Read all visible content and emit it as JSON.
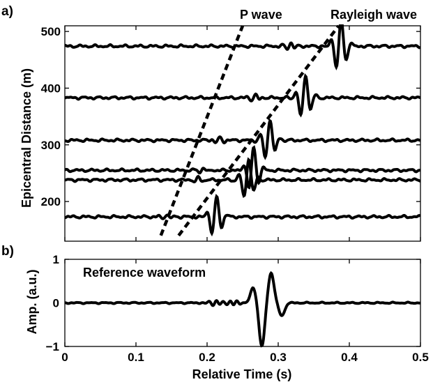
{
  "chart_data": [
    {
      "type": "line",
      "panel_label": "a)",
      "title": "",
      "xlabel": "",
      "ylabel": "Epicentral Distance (m)",
      "xlim": [
        0,
        0.5
      ],
      "ylim": [
        130,
        510
      ],
      "yticks": [
        200,
        300,
        400,
        500
      ],
      "ytick_labels": [
        "200",
        "300",
        "400",
        "500"
      ],
      "xtick_labels_shown": false,
      "grid": false,
      "traces": [
        {
          "offset": 173,
          "arrival_time": 0.21,
          "amplitude": 28
        },
        {
          "offset": 238,
          "arrival_time": 0.255,
          "amplitude": 30
        },
        {
          "offset": 255,
          "arrival_time": 0.262,
          "amplitude": 32
        },
        {
          "offset": 308,
          "arrival_time": 0.285,
          "amplitude": 30
        },
        {
          "offset": 383,
          "arrival_time": 0.335,
          "amplitude": 32
        },
        {
          "offset": 474,
          "arrival_time": 0.385,
          "amplitude": 38
        }
      ],
      "annotations": [
        {
          "text": "P wave",
          "line": [
            [
              0.135,
              140
            ],
            [
              0.25,
              510
            ]
          ]
        },
        {
          "text": "Rayleigh wave",
          "line": [
            [
              0.16,
              140
            ],
            [
              0.385,
              510
            ]
          ]
        }
      ]
    },
    {
      "type": "line",
      "panel_label": "b)",
      "title": "",
      "xlabel": "Relative Time (s)",
      "ylabel": "Amp. (a.u.)",
      "xlim": [
        0,
        0.5
      ],
      "ylim": [
        -1,
        1
      ],
      "xticks": [
        0,
        0.1,
        0.2,
        0.3,
        0.4,
        0.5
      ],
      "xtick_labels": [
        "0",
        "0.1",
        "0.2",
        "0.3",
        "0.4",
        "0.5"
      ],
      "yticks": [
        -1,
        0,
        1
      ],
      "ytick_labels": [
        "−1",
        "0",
        "1"
      ],
      "grid": false,
      "legend_text": "Reference waveform",
      "reference_peaks": [
        {
          "t": 0.265,
          "amp": 0.35
        },
        {
          "t": 0.277,
          "amp": -1.0
        },
        {
          "t": 0.29,
          "amp": 0.7
        },
        {
          "t": 0.305,
          "amp": -0.3
        }
      ]
    }
  ]
}
